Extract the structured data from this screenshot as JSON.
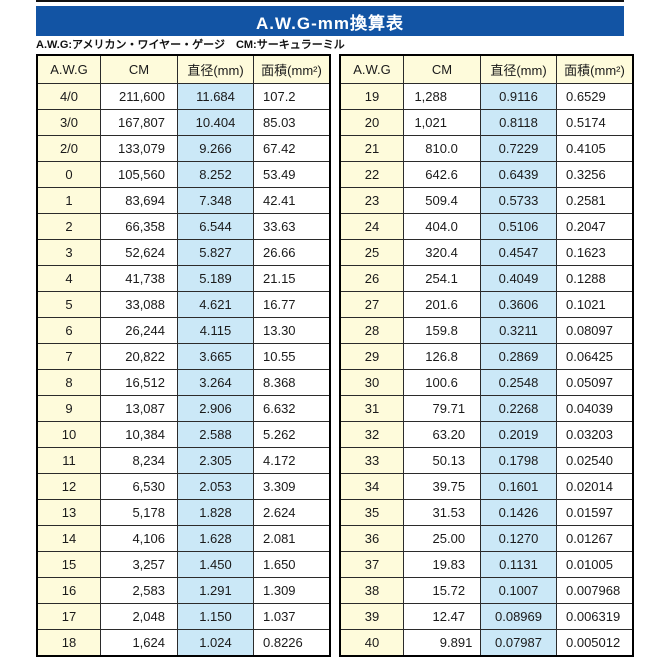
{
  "title": "A.W.G-mm換算表",
  "note": "A.W.G:アメリカン・ワイヤー・ゲージ　CM:サーキュラーミル",
  "columns": [
    "A.W.G",
    "CM",
    "直径(mm)",
    "面積(mm²)"
  ],
  "colors": {
    "banner_blue": "#1254a4",
    "header_cream": "#fefbdb",
    "diameter_blue": "#cbe8f7",
    "border": "#2b2b2b"
  },
  "tables": [
    {
      "decimal_align": false,
      "rows": [
        [
          "4/0",
          "211,600",
          "11.684",
          "107.2"
        ],
        [
          "3/0",
          "167,807",
          "10.404",
          "85.03"
        ],
        [
          "2/0",
          "133,079",
          "9.266",
          "67.42"
        ],
        [
          "0",
          "105,560",
          "8.252",
          "53.49"
        ],
        [
          "1",
          "83,694",
          "7.348",
          "42.41"
        ],
        [
          "2",
          "66,358",
          "6.544",
          "33.63"
        ],
        [
          "3",
          "52,624",
          "5.827",
          "26.66"
        ],
        [
          "4",
          "41,738",
          "5.189",
          "21.15"
        ],
        [
          "5",
          "33,088",
          "4.621",
          "16.77"
        ],
        [
          "6",
          "26,244",
          "4.115",
          "13.30"
        ],
        [
          "7",
          "20,822",
          "3.665",
          "10.55"
        ],
        [
          "8",
          "16,512",
          "3.264",
          "8.368"
        ],
        [
          "9",
          "13,087",
          "2.906",
          "6.632"
        ],
        [
          "10",
          "10,384",
          "2.588",
          "5.262"
        ],
        [
          "11",
          "8,234",
          "2.305",
          "4.172"
        ],
        [
          "12",
          "6,530",
          "2.053",
          "3.309"
        ],
        [
          "13",
          "5,178",
          "1.828",
          "2.624"
        ],
        [
          "14",
          "4,106",
          "1.628",
          "2.081"
        ],
        [
          "15",
          "3,257",
          "1.450",
          "1.650"
        ],
        [
          "16",
          "2,583",
          "1.291",
          "1.309"
        ],
        [
          "17",
          "2,048",
          "1.150",
          "1.037"
        ],
        [
          "18",
          "1,624",
          "1.024",
          "0.8226"
        ]
      ]
    },
    {
      "decimal_align": true,
      "rows": [
        [
          "19",
          "1,288",
          "0.9116",
          "0.6529"
        ],
        [
          "20",
          "1,021",
          "0.8118",
          "0.5174"
        ],
        [
          "21",
          "810.0",
          "0.7229",
          "0.4105"
        ],
        [
          "22",
          "642.6",
          "0.6439",
          "0.3256"
        ],
        [
          "23",
          "509.4",
          "0.5733",
          "0.2581"
        ],
        [
          "24",
          "404.0",
          "0.5106",
          "0.2047"
        ],
        [
          "25",
          "320.4",
          "0.4547",
          "0.1623"
        ],
        [
          "26",
          "254.1",
          "0.4049",
          "0.1288"
        ],
        [
          "27",
          "201.6",
          "0.3606",
          "0.1021"
        ],
        [
          "28",
          "159.8",
          "0.3211",
          "0.08097"
        ],
        [
          "29",
          "126.8",
          "0.2869",
          "0.06425"
        ],
        [
          "30",
          "100.6",
          "0.2548",
          "0.05097"
        ],
        [
          "31",
          "79.71",
          "0.2268",
          "0.04039"
        ],
        [
          "32",
          "63.20",
          "0.2019",
          "0.03203"
        ],
        [
          "33",
          "50.13",
          "0.1798",
          "0.02540"
        ],
        [
          "34",
          "39.75",
          "0.1601",
          "0.02014"
        ],
        [
          "35",
          "31.53",
          "0.1426",
          "0.01597"
        ],
        [
          "36",
          "25.00",
          "0.1270",
          "0.01267"
        ],
        [
          "37",
          "19.83",
          "0.1131",
          "0.01005"
        ],
        [
          "38",
          "15.72",
          "0.1007",
          "0.007968"
        ],
        [
          "39",
          "12.47",
          "0.08969",
          "0.006319"
        ],
        [
          "40",
          "9.891",
          "0.07987",
          "0.005012"
        ]
      ]
    }
  ]
}
